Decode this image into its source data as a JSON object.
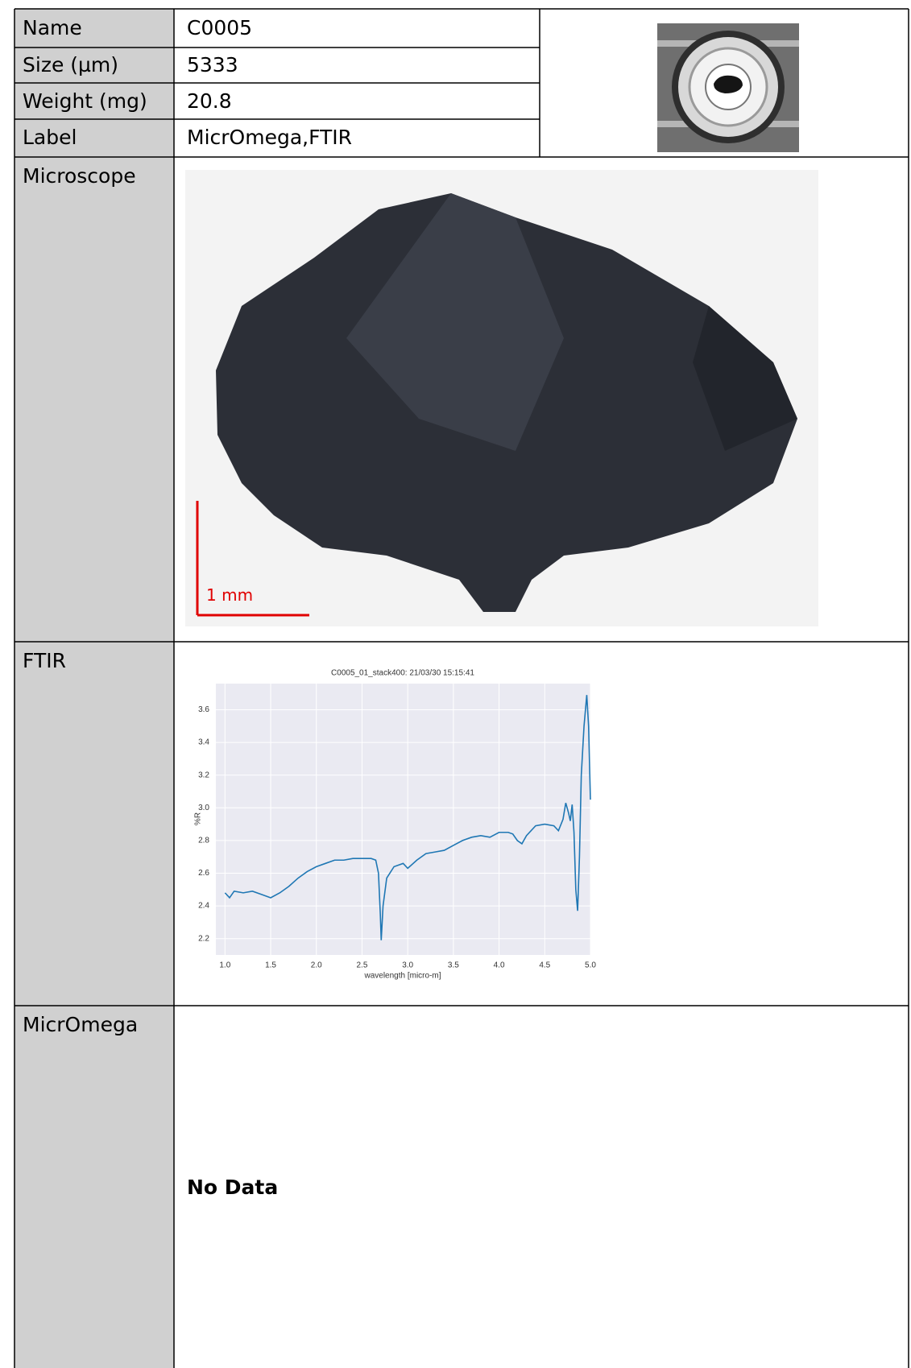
{
  "table": {
    "rows": [
      [
        "Name",
        "C0005"
      ],
      [
        "Size (µm)",
        "5333"
      ],
      [
        "Weight (mg)",
        "20.8"
      ],
      [
        "Label",
        "MicrOmega,FTIR"
      ]
    ],
    "microscope": {
      "label": "Microscope",
      "scale_bar": "1 mm"
    },
    "ftir": {
      "label": "FTIR"
    },
    "micromega": {
      "label": "MicrOmega",
      "text": "No Data"
    }
  },
  "chart_data": {
    "type": "line",
    "title": "C0005_01_stack400:  21/03/30 15:15:41",
    "x_label": "wavelength [micro-m]",
    "y_label": "%R",
    "color": "#1f77b4",
    "grid": true,
    "x": [
      1.0,
      1.05,
      1.1,
      1.2,
      1.3,
      1.4,
      1.5,
      1.6,
      1.7,
      1.8,
      1.9,
      2.0,
      2.1,
      2.2,
      2.3,
      2.4,
      2.5,
      2.6,
      2.65,
      2.68,
      2.7,
      2.71,
      2.73,
      2.77,
      2.85,
      2.95,
      3.0,
      3.1,
      3.2,
      3.3,
      3.4,
      3.5,
      3.6,
      3.7,
      3.8,
      3.9,
      4.0,
      4.1,
      4.15,
      4.2,
      4.25,
      4.3,
      4.4,
      4.5,
      4.6,
      4.65,
      4.7,
      4.73,
      4.76,
      4.78,
      4.8,
      4.82,
      4.84,
      4.86,
      4.88,
      4.9,
      4.93,
      4.96,
      4.98,
      5.0
    ],
    "y": [
      2.48,
      2.45,
      2.49,
      2.48,
      2.49,
      2.47,
      2.45,
      2.48,
      2.52,
      2.57,
      2.61,
      2.64,
      2.66,
      2.68,
      2.68,
      2.69,
      2.69,
      2.69,
      2.68,
      2.6,
      2.35,
      2.19,
      2.4,
      2.57,
      2.64,
      2.66,
      2.63,
      2.68,
      2.72,
      2.73,
      2.74,
      2.77,
      2.8,
      2.82,
      2.83,
      2.82,
      2.85,
      2.85,
      2.84,
      2.8,
      2.78,
      2.83,
      2.89,
      2.9,
      2.89,
      2.86,
      2.93,
      3.03,
      2.97,
      2.92,
      3.02,
      2.85,
      2.5,
      2.37,
      2.7,
      3.2,
      3.5,
      3.69,
      3.5,
      3.05
    ],
    "xlim": [
      0.9,
      5.0
    ],
    "ylim": [
      2.1,
      3.76
    ],
    "xticks": [
      {
        "value": 1,
        "label": "1.0"
      },
      1.5,
      {
        "value": 2,
        "label": "2.0"
      },
      2.5,
      {
        "value": 3,
        "label": "3.0"
      },
      3.5,
      {
        "value": 4,
        "label": "4.0"
      },
      4.5,
      {
        "value": 5,
        "label": "5.0"
      }
    ],
    "yticks": [
      2.2,
      2.4,
      2.6,
      2.8,
      {
        "value": 3,
        "label": "3.0"
      },
      3.2,
      3.4,
      3.6
    ]
  }
}
